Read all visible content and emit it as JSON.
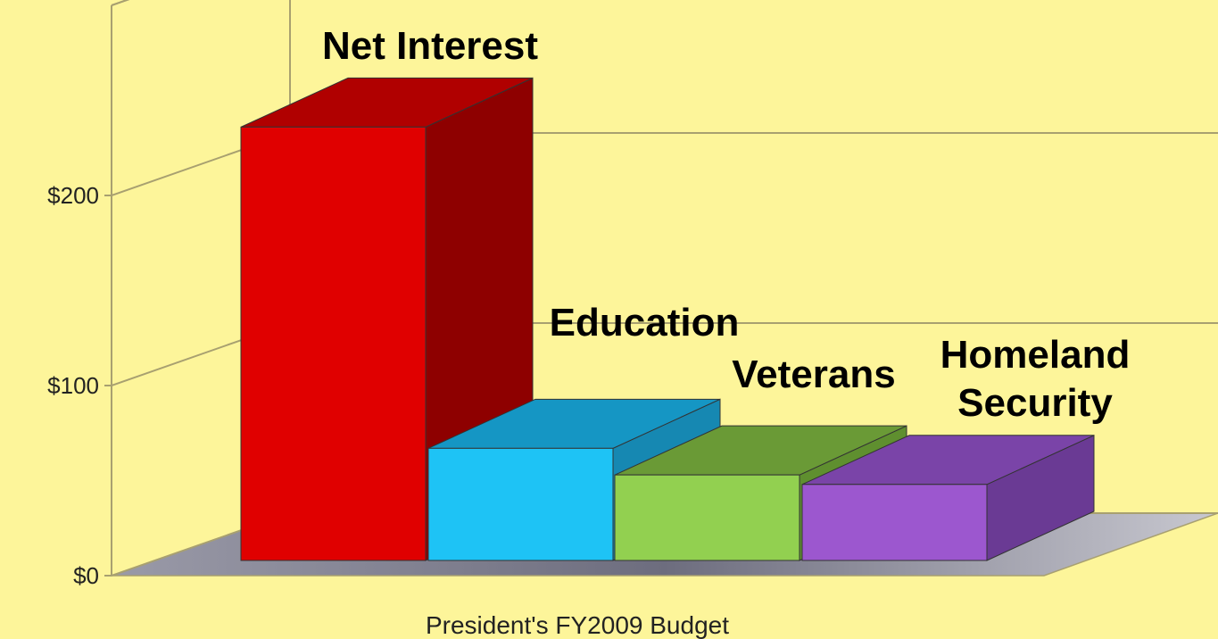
{
  "chart_data": {
    "type": "bar",
    "categories": [
      "Net Interest",
      "Education",
      "Veterans",
      "Homeland Security"
    ],
    "values": [
      228,
      59,
      45,
      40
    ],
    "category_labels": [
      [
        "Net Interest"
      ],
      [
        "Education"
      ],
      [
        "Veterans"
      ],
      [
        "Homeland",
        "Security"
      ]
    ],
    "bar_colors": [
      {
        "front": "#e00000",
        "side": "#8e0000",
        "top": "#b00000"
      },
      {
        "front": "#1ec3f5",
        "side": "#1688b2",
        "top": "#1596c4"
      },
      {
        "front": "#92d050",
        "side": "#5f8f2f",
        "top": "#6a9a36"
      },
      {
        "front": "#9c57cf",
        "side": "#6a3a94",
        "top": "#7a44a8"
      }
    ],
    "y_ticks": [
      0,
      100,
      200
    ],
    "y_tick_labels": [
      "$0",
      "$100",
      "$200"
    ],
    "ylim": [
      0,
      300
    ],
    "xlabel": "President's FY2009 Budget",
    "title": "",
    "ylabel": "",
    "grid": true,
    "legend": "none",
    "background_color": "#fdf59a",
    "gridline_color": "#a8a070",
    "floor_color": "#b0b0b0"
  }
}
